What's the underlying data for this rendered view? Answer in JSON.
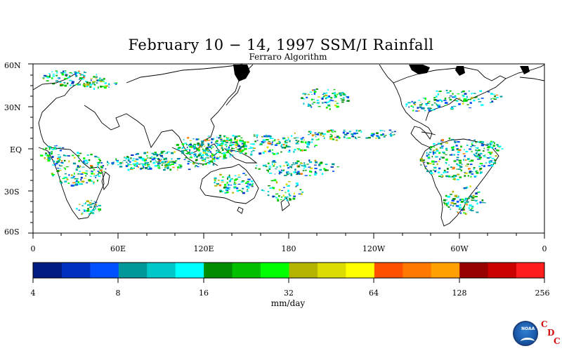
{
  "title": "February 10 − 14, 1997 SSM/I Rainfall",
  "subtitle": "Ferraro Algorithm",
  "map": {
    "lat_labels": [
      "60N",
      "30N",
      "EQ",
      "30S",
      "60S"
    ],
    "lon_labels": [
      "0",
      "60E",
      "120E",
      "180",
      "120W",
      "60W",
      "0"
    ],
    "colors": {
      "land_outline": "#000000",
      "ice": "#000000"
    }
  },
  "colorbar": {
    "tick_labels": [
      "4",
      "8",
      "16",
      "32",
      "64",
      "128",
      "256"
    ],
    "units": "mm/day",
    "colors": [
      "#001c80",
      "#0030c0",
      "#0050ff",
      "#009898",
      "#00c8c8",
      "#00ffff",
      "#008c00",
      "#00c000",
      "#00ff00",
      "#b4b400",
      "#dcdc00",
      "#ffff00",
      "#ff5000",
      "#ff7800",
      "#ffa000",
      "#960000",
      "#c80000",
      "#ff1e1e"
    ]
  },
  "logo": {
    "name": "noaa-logo",
    "text": "NOAA",
    "letters": [
      "C",
      "D",
      "C"
    ]
  }
}
